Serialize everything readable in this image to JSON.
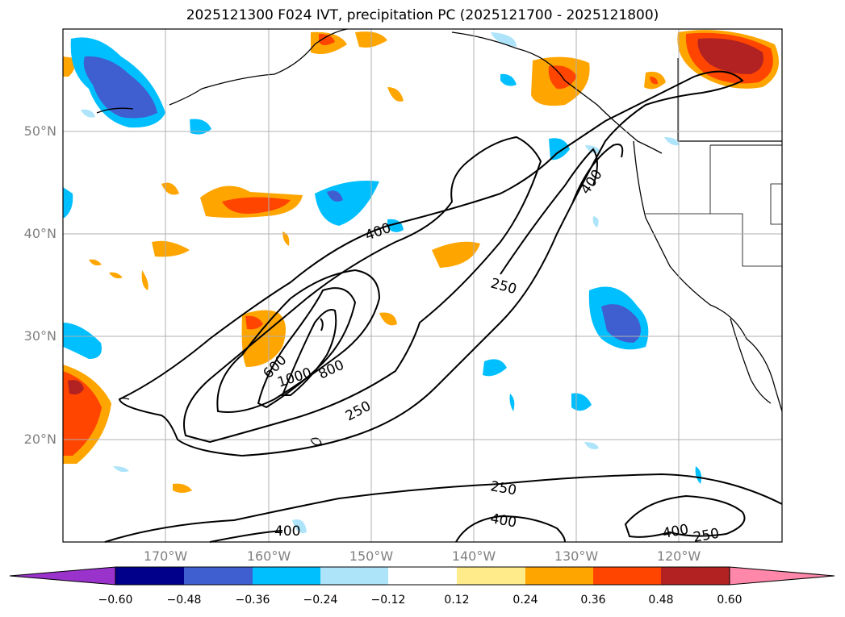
{
  "title": "2025121300 F024 IVT, precipitation PC (2025121700 - 2025121800)",
  "lat_labels": [
    "50°N",
    "40°N",
    "30°N",
    "20°N"
  ],
  "lon_labels": [
    "170°W",
    "160°W",
    "150°W",
    "140°W",
    "130°W",
    "120°W"
  ],
  "contour_labels": [
    "400",
    "250",
    "400",
    "600",
    "1000",
    "800",
    "250",
    "250",
    "400",
    "400",
    "250",
    "400"
  ],
  "colorbar": {
    "ticks": [
      "−0.60",
      "−0.48",
      "−0.36",
      "−0.24",
      "−0.12",
      "0.12",
      "0.24",
      "0.36",
      "0.48",
      "0.60"
    ],
    "colors": [
      "#9933cc",
      "#00008b",
      "#3f5fd0",
      "#00bfff",
      "#aee4fa",
      "#ffffff",
      "#ffeb8a",
      "#ffa500",
      "#ff4500",
      "#b22222",
      "#ff88aa"
    ]
  }
}
